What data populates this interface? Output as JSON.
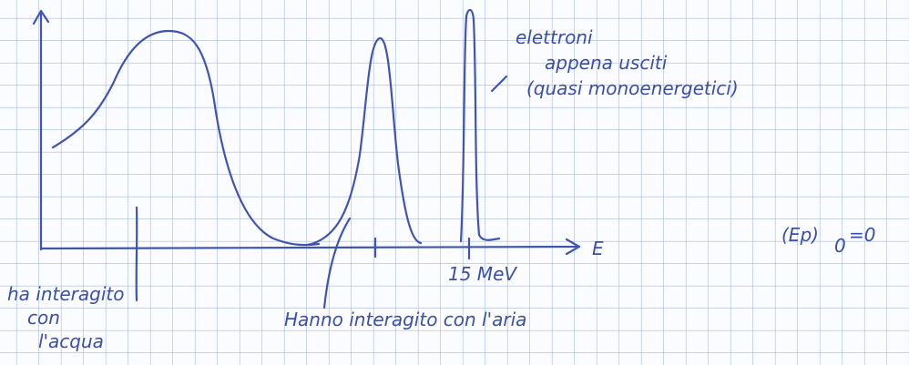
{
  "axes": {
    "x_label": "E",
    "tick_label": "15 MeV"
  },
  "annotations": {
    "electrons": [
      "elettroni",
      "appena usciti",
      "(quasi monoenergetici)"
    ],
    "water": [
      "ha interagito",
      "con",
      "l'acqua"
    ],
    "air": "Hanno interagito con l'aria"
  },
  "formula": {
    "base": "(Ep)",
    "subscript": "0",
    "rhs": "=0"
  }
}
